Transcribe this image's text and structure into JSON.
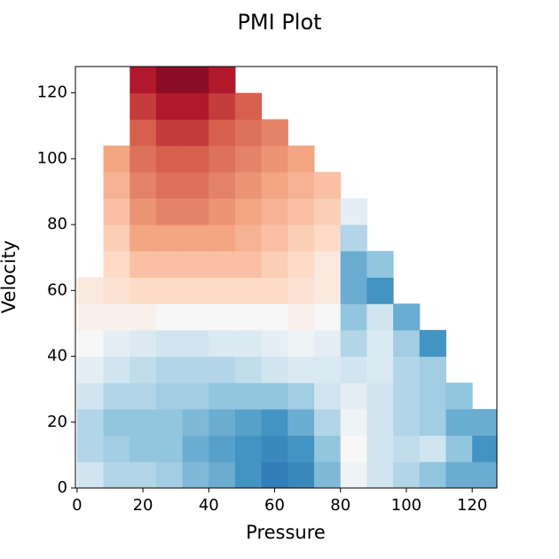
{
  "chart_data": {
    "type": "heatmap",
    "title": "PMI Plot",
    "x_label": "Pressure",
    "y_label": "Velocity",
    "x_bins": [
      0,
      8,
      16,
      24,
      32,
      40,
      48,
      56,
      64,
      72,
      80,
      88,
      96,
      104,
      112,
      120,
      128
    ],
    "y_bins": [
      0,
      8,
      16,
      24,
      32,
      40,
      48,
      56,
      64,
      72,
      80,
      88,
      96,
      104,
      112,
      120,
      128
    ],
    "z": [
      [
        -0.2,
        -0.3,
        -0.3,
        -0.35,
        -0.45,
        -0.5,
        -0.6,
        -0.7,
        -0.65,
        -0.45,
        -0.05,
        -0.2,
        -0.3,
        -0.4,
        -0.5,
        -0.5
      ],
      [
        -0.3,
        -0.35,
        -0.4,
        -0.4,
        -0.5,
        -0.55,
        -0.6,
        -0.65,
        -0.6,
        -0.4,
        0.0,
        -0.2,
        -0.25,
        -0.2,
        -0.4,
        -0.6
      ],
      [
        -0.3,
        -0.4,
        -0.4,
        -0.4,
        -0.45,
        -0.5,
        -0.55,
        -0.6,
        -0.5,
        -0.3,
        -0.05,
        -0.2,
        -0.3,
        -0.35,
        -0.5,
        -0.5
      ],
      [
        -0.2,
        -0.3,
        -0.3,
        -0.35,
        -0.35,
        -0.4,
        -0.4,
        -0.4,
        -0.35,
        -0.2,
        -0.1,
        -0.2,
        -0.3,
        -0.35,
        -0.4,
        null
      ],
      [
        -0.1,
        -0.2,
        -0.25,
        -0.3,
        -0.3,
        -0.3,
        -0.25,
        -0.2,
        -0.15,
        -0.15,
        -0.2,
        -0.15,
        -0.3,
        -0.35,
        null,
        null
      ],
      [
        0.0,
        -0.1,
        -0.15,
        -0.2,
        -0.2,
        -0.15,
        -0.15,
        -0.1,
        -0.05,
        -0.1,
        -0.3,
        -0.15,
        -0.35,
        -0.6,
        null,
        null
      ],
      [
        0.05,
        0.05,
        0.05,
        0.0,
        0.0,
        0.0,
        0.0,
        0.0,
        0.05,
        0.0,
        -0.4,
        -0.2,
        -0.5,
        null,
        null,
        null
      ],
      [
        0.1,
        0.15,
        0.2,
        0.2,
        0.2,
        0.2,
        0.2,
        0.2,
        0.15,
        0.1,
        -0.5,
        -0.6,
        null,
        null,
        null,
        null
      ],
      [
        null,
        0.2,
        0.3,
        0.3,
        0.3,
        0.3,
        0.3,
        0.25,
        0.2,
        0.1,
        -0.5,
        -0.4,
        null,
        null,
        null,
        null
      ],
      [
        null,
        0.25,
        0.4,
        0.4,
        0.4,
        0.4,
        0.35,
        0.3,
        0.25,
        0.2,
        -0.3,
        null,
        null,
        null,
        null,
        null
      ],
      [
        null,
        0.3,
        0.45,
        0.5,
        0.5,
        0.45,
        0.4,
        0.35,
        0.3,
        0.25,
        -0.1,
        null,
        null,
        null,
        null,
        null
      ],
      [
        null,
        0.35,
        0.5,
        0.55,
        0.55,
        0.5,
        0.45,
        0.4,
        0.35,
        0.3,
        null,
        null,
        null,
        null,
        null,
        null
      ],
      [
        null,
        0.4,
        0.55,
        0.6,
        0.6,
        0.55,
        0.5,
        0.45,
        0.4,
        null,
        null,
        null,
        null,
        null,
        null,
        null
      ],
      [
        null,
        null,
        0.6,
        0.7,
        0.7,
        0.6,
        0.55,
        0.5,
        null,
        null,
        null,
        null,
        null,
        null,
        null,
        null
      ],
      [
        null,
        null,
        0.7,
        0.8,
        0.8,
        0.7,
        0.6,
        null,
        null,
        null,
        null,
        null,
        null,
        null,
        null,
        null
      ],
      [
        null,
        null,
        0.8,
        0.9,
        0.9,
        0.8,
        null,
        null,
        null,
        null,
        null,
        null,
        null,
        null,
        null,
        null
      ]
    ],
    "zlim": [
      -1,
      1
    ],
    "colormap": [
      "#053061",
      "#2166ac",
      "#4393c3",
      "#92c5de",
      "#d1e5f0",
      "#f7f7f7",
      "#fddbc7",
      "#f4a582",
      "#d6604d",
      "#b2182b",
      "#67001f"
    ],
    "xlim": [
      -0.5,
      127.5
    ],
    "ylim": [
      0,
      128
    ],
    "xticks": [
      0,
      20,
      40,
      60,
      80,
      100,
      120
    ],
    "yticks": [
      0,
      20,
      40,
      60,
      80,
      100,
      120
    ]
  }
}
